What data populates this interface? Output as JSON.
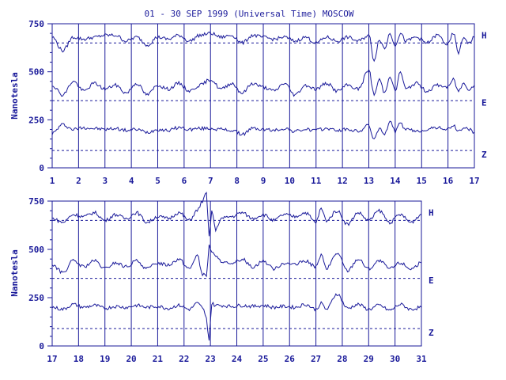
{
  "chart_data": {
    "type": "line",
    "title": "01 - 30 SEP 1999 (Universal Time) MOSCOW",
    "ylabel": "Nanotesla",
    "line_color": "#1a1a9a",
    "background": "#ffffff",
    "grid": "vertical day lines",
    "panels": [
      {
        "x_ticks": [
          "1",
          "2",
          "3",
          "4",
          "5",
          "6",
          "7",
          "8",
          "9",
          "10",
          "11",
          "12",
          "13",
          "14",
          "15",
          "16",
          "17"
        ],
        "xlim": [
          1,
          17
        ],
        "ylim": [
          0,
          750
        ],
        "y_ticks": [
          "0",
          "250",
          "500",
          "750"
        ],
        "series": [
          {
            "name": "H",
            "baseline": 650,
            "x": [
              1,
              1.4,
              1.8,
              2.2,
              2.6,
              3,
              3.4,
              3.8,
              4.2,
              4.6,
              5,
              5.4,
              5.8,
              6.2,
              6.6,
              7,
              7.4,
              7.8,
              8.2,
              8.6,
              9,
              9.4,
              9.8,
              10.2,
              10.6,
              11,
              11.4,
              11.8,
              12.2,
              12.6,
              13,
              13.2,
              13.4,
              13.6,
              13.8,
              14,
              14.2,
              14.4,
              14.8,
              15.2,
              15.6,
              16,
              16.2,
              16.4,
              16.6,
              16.8,
              17
            ],
            "y": [
              680,
              610,
              680,
              670,
              680,
              690,
              690,
              660,
              680,
              640,
              680,
              670,
              690,
              660,
              690,
              700,
              680,
              690,
              650,
              690,
              680,
              670,
              680,
              660,
              680,
              650,
              680,
              660,
              680,
              660,
              690,
              560,
              670,
              620,
              700,
              640,
              700,
              660,
              680,
              650,
              690,
              640,
              700,
              600,
              680,
              650,
              680
            ]
          },
          {
            "name": "E",
            "baseline": 350,
            "x": [
              1,
              1.4,
              1.8,
              2.2,
              2.6,
              3,
              3.4,
              3.8,
              4.2,
              4.6,
              5,
              5.4,
              5.8,
              6.2,
              6.6,
              7,
              7.4,
              7.8,
              8.2,
              8.6,
              9,
              9.4,
              9.8,
              10.2,
              10.6,
              11,
              11.4,
              11.8,
              12.2,
              12.6,
              13,
              13.2,
              13.4,
              13.6,
              13.8,
              14,
              14.2,
              14.4,
              14.8,
              15.2,
              15.6,
              16,
              16.2,
              16.4,
              16.6,
              16.8,
              17
            ],
            "y": [
              430,
              380,
              450,
              400,
              440,
              410,
              430,
              390,
              440,
              380,
              430,
              410,
              440,
              400,
              430,
              460,
              410,
              440,
              390,
              440,
              420,
              400,
              440,
              380,
              430,
              410,
              440,
              400,
              430,
              410,
              510,
              380,
              460,
              390,
              480,
              400,
              500,
              410,
              440,
              400,
              430,
              420,
              460,
              400,
              440,
              410,
              430
            ]
          },
          {
            "name": "Z",
            "baseline": 90,
            "x": [
              1,
              1.4,
              1.8,
              2.2,
              2.6,
              3,
              3.4,
              3.8,
              4.2,
              4.6,
              5,
              5.4,
              5.8,
              6.2,
              6.6,
              7,
              7.4,
              7.8,
              8.2,
              8.6,
              9,
              9.4,
              9.8,
              10.2,
              10.6,
              11,
              11.4,
              11.8,
              12.2,
              12.6,
              13,
              13.2,
              13.4,
              13.6,
              13.8,
              14,
              14.2,
              14.4,
              14.8,
              15.2,
              15.6,
              16,
              16.2,
              16.4,
              16.6,
              16.8,
              17
            ],
            "y": [
              180,
              225,
              200,
              210,
              205,
              200,
              205,
              195,
              200,
              185,
              200,
              195,
              210,
              200,
              205,
              205,
              200,
              195,
              175,
              205,
              200,
              195,
              205,
              190,
              200,
              195,
              205,
              195,
              200,
              190,
              220,
              150,
              200,
              180,
              240,
              190,
              230,
              200,
              190,
              200,
              210,
              200,
              220,
              190,
              210,
              200,
              185
            ]
          }
        ]
      },
      {
        "x_ticks": [
          "17",
          "18",
          "19",
          "20",
          "21",
          "22",
          "23",
          "24",
          "25",
          "26",
          "27",
          "28",
          "29",
          "30",
          "31"
        ],
        "xlim": [
          17,
          31
        ],
        "ylim": [
          0,
          750
        ],
        "y_ticks": [
          "0",
          "250",
          "500",
          "750"
        ],
        "series": [
          {
            "name": "H",
            "baseline": 650,
            "x": [
              17,
              17.4,
              17.8,
              18.2,
              18.6,
              19,
              19.4,
              19.8,
              20.2,
              20.6,
              21,
              21.4,
              21.8,
              22.2,
              22.5,
              22.7,
              22.85,
              22.95,
              23.05,
              23.2,
              23.4,
              23.8,
              24.2,
              24.6,
              25,
              25.4,
              25.8,
              26.2,
              26.6,
              27,
              27.2,
              27.4,
              27.8,
              28.2,
              28.6,
              29,
              29.4,
              29.8,
              30.2,
              30.6,
              31
            ],
            "y": [
              660,
              640,
              680,
              670,
              690,
              650,
              680,
              660,
              690,
              640,
              670,
              660,
              690,
              650,
              700,
              750,
              790,
              560,
              700,
              600,
              660,
              670,
              690,
              660,
              680,
              650,
              680,
              670,
              690,
              640,
              710,
              650,
              700,
              630,
              690,
              650,
              700,
              640,
              680,
              640,
              680
            ]
          },
          {
            "name": "E",
            "baseline": 350,
            "x": [
              17,
              17.4,
              17.8,
              18.2,
              18.6,
              19,
              19.4,
              19.8,
              20.2,
              20.6,
              21,
              21.4,
              21.8,
              22.2,
              22.5,
              22.7,
              22.85,
              22.95,
              23.05,
              23.2,
              23.4,
              23.8,
              24.2,
              24.6,
              25,
              25.4,
              25.8,
              26.2,
              26.6,
              27,
              27.2,
              27.4,
              27.8,
              28.2,
              28.6,
              29,
              29.4,
              29.8,
              30.2,
              30.6,
              31
            ],
            "y": [
              420,
              380,
              440,
              410,
              440,
              400,
              430,
              410,
              440,
              400,
              430,
              420,
              450,
              400,
              470,
              370,
              360,
              520,
              490,
              460,
              440,
              420,
              450,
              410,
              440,
              400,
              430,
              420,
              440,
              410,
              470,
              400,
              480,
              390,
              450,
              400,
              440,
              400,
              430,
              400,
              430
            ]
          },
          {
            "name": "Z",
            "baseline": 90,
            "x": [
              17,
              17.4,
              17.8,
              18.2,
              18.6,
              19,
              19.4,
              19.8,
              20.2,
              20.6,
              21,
              21.4,
              21.8,
              22.2,
              22.5,
              22.7,
              22.85,
              22.95,
              23.05,
              23.2,
              23.4,
              23.8,
              24.2,
              24.6,
              25,
              25.4,
              25.8,
              26.2,
              26.6,
              27,
              27.2,
              27.4,
              27.8,
              28.2,
              28.6,
              29,
              29.4,
              29.8,
              30.2,
              30.6,
              31
            ],
            "y": [
              200,
              190,
              215,
              200,
              210,
              195,
              205,
              200,
              210,
              200,
              205,
              195,
              210,
              190,
              220,
              200,
              140,
              30,
              220,
              210,
              210,
              205,
              210,
              205,
              210,
              200,
              205,
              200,
              215,
              190,
              220,
              190,
              270,
              195,
              215,
              190,
              210,
              185,
              215,
              190,
              200
            ]
          }
        ]
      }
    ]
  }
}
